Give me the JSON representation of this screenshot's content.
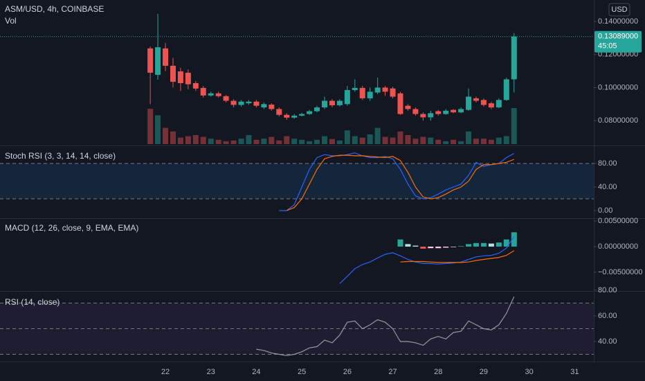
{
  "chart_data": [
    {
      "type": "candlestick",
      "title": "ASM/USD, 4h, COINBASE",
      "subtitle": "Vol",
      "currency": "USD",
      "x": [
        21.667,
        21.833,
        22,
        22.167,
        22.333,
        22.5,
        22.667,
        22.833,
        23,
        23.167,
        23.333,
        23.5,
        23.667,
        23.833,
        24,
        24.167,
        24.333,
        24.5,
        24.667,
        24.833,
        25,
        25.167,
        25.333,
        25.5,
        25.667,
        25.833,
        26,
        26.167,
        26.333,
        26.5,
        26.667,
        26.833,
        27,
        27.167,
        27.333,
        27.5,
        27.667,
        27.833,
        28,
        28.167,
        28.333,
        28.5,
        28.667,
        28.833,
        29,
        29.167,
        29.333,
        29.5,
        29.667
      ],
      "open": [
        0.1237,
        0.1077,
        0.1237,
        0.1132,
        0.1098,
        0.109,
        0.1027,
        0.0998,
        0.0952,
        0.0965,
        0.0948,
        0.092,
        0.0895,
        0.0905,
        0.0915,
        0.088,
        0.0897,
        0.087,
        0.0835,
        0.0818,
        0.083,
        0.084,
        0.0857,
        0.088,
        0.092,
        0.0893,
        0.09,
        0.0985,
        0.0998,
        0.0935,
        0.097,
        0.1,
        0.0995,
        0.0965,
        0.089,
        0.087,
        0.084,
        0.082,
        0.0857,
        0.084,
        0.0865,
        0.085,
        0.0865,
        0.0935,
        0.0925,
        0.0905,
        0.088,
        0.0925,
        0.105
      ],
      "high": [
        0.1249,
        0.1446,
        0.127,
        0.118,
        0.112,
        0.111,
        0.104,
        0.101,
        0.0975,
        0.0975,
        0.0955,
        0.093,
        0.0925,
        0.0925,
        0.0925,
        0.091,
        0.0905,
        0.088,
        0.0845,
        0.084,
        0.0848,
        0.0865,
        0.089,
        0.0945,
        0.093,
        0.093,
        0.101,
        0.105,
        0.101,
        0.1,
        0.106,
        0.101,
        0.1005,
        0.0975,
        0.09,
        0.088,
        0.085,
        0.086,
        0.0865,
        0.087,
        0.087,
        0.088,
        0.0995,
        0.0945,
        0.0935,
        0.0915,
        0.0935,
        0.106,
        0.133
      ],
      "low": [
        0.09,
        0.1048,
        0.11,
        0.1,
        0.098,
        0.099,
        0.098,
        0.094,
        0.0945,
        0.094,
        0.091,
        0.088,
        0.0885,
        0.0895,
        0.088,
        0.087,
        0.086,
        0.0825,
        0.0805,
        0.081,
        0.0825,
        0.0835,
        0.085,
        0.087,
        0.088,
        0.0885,
        0.089,
        0.0975,
        0.0925,
        0.092,
        0.096,
        0.095,
        0.0935,
        0.0835,
        0.086,
        0.083,
        0.08,
        0.08,
        0.083,
        0.0835,
        0.0845,
        0.0845,
        0.086,
        0.091,
        0.0885,
        0.087,
        0.0875,
        0.092,
        0.097
      ],
      "close": [
        0.109,
        0.1244,
        0.1132,
        0.1035,
        0.1027,
        0.102,
        0.0994,
        0.0952,
        0.0965,
        0.0948,
        0.092,
        0.0895,
        0.0915,
        0.0915,
        0.089,
        0.09,
        0.087,
        0.0835,
        0.0818,
        0.083,
        0.084,
        0.0857,
        0.088,
        0.092,
        0.0893,
        0.092,
        0.0985,
        0.0998,
        0.0935,
        0.0975,
        0.1,
        0.0975,
        0.0945,
        0.084,
        0.087,
        0.084,
        0.082,
        0.0845,
        0.084,
        0.086,
        0.085,
        0.087,
        0.0945,
        0.092,
        0.0895,
        0.088,
        0.0925,
        0.105,
        0.13089
      ],
      "volume": [
        98,
        80,
        45,
        35,
        18,
        22,
        25,
        20,
        15,
        12,
        8,
        10,
        15,
        25,
        12,
        15,
        20,
        10,
        22,
        15,
        12,
        8,
        12,
        22,
        14,
        10,
        38,
        22,
        18,
        27,
        45,
        20,
        18,
        35,
        25,
        15,
        20,
        18,
        12,
        8,
        12,
        8,
        35,
        15,
        15,
        12,
        18,
        22,
        100
      ],
      "up_color": "#26a69a",
      "down_color": "#ef5350",
      "xlim": [
        18.362,
        31.421
      ],
      "xticks": [
        22,
        23,
        24,
        25,
        26,
        27,
        28,
        29,
        30,
        31
      ],
      "ylim": [
        0.0658,
        0.153
      ],
      "yticks": [
        {
          "value": 0.08,
          "label": "0.08000000"
        },
        {
          "value": 0.1,
          "label": "0.10000000"
        },
        {
          "value": 0.12,
          "label": "0.12000000"
        },
        {
          "value": 0.14,
          "label": "0.14000000"
        }
      ],
      "last_price": {
        "value": 0.13089,
        "label": "0.13089000"
      },
      "countdown": "45:05"
    },
    {
      "type": "line",
      "title": "Stoch RSI (3, 3, 14, 14, close)",
      "series": [
        {
          "color": "#2962ff",
          "values": [
            null,
            null,
            null,
            null,
            null,
            null,
            null,
            null,
            null,
            null,
            null,
            null,
            null,
            null,
            null,
            null,
            null,
            0,
            0,
            10,
            40,
            70,
            90,
            95,
            93,
            93,
            95,
            98,
            93,
            90,
            90,
            92,
            88,
            70,
            45,
            25,
            20,
            22,
            28,
            35,
            40,
            45,
            60,
            82,
            75,
            78,
            80,
            90,
            97
          ]
        },
        {
          "color": "#ff6d00",
          "values": [
            null,
            null,
            null,
            null,
            null,
            null,
            null,
            null,
            null,
            null,
            null,
            null,
            null,
            null,
            null,
            null,
            null,
            null,
            0,
            5,
            20,
            45,
            70,
            88,
            92,
            94,
            94,
            93,
            93,
            92,
            91,
            90,
            92,
            85,
            65,
            40,
            23,
            20,
            22,
            28,
            35,
            40,
            50,
            70,
            78,
            78,
            80,
            82,
            87
          ]
        }
      ],
      "ylim": [
        -10.6,
        107
      ],
      "yticks": [
        {
          "value": 0,
          "label": "0.00"
        },
        {
          "value": 40,
          "label": "40.00"
        },
        {
          "value": 80,
          "label": "80.00"
        }
      ],
      "levels": [
        20,
        80
      ],
      "band_color": "rgba(33,150,243,0.12)"
    },
    {
      "type": "macd",
      "title": "MACD (12, 26, close, 9, EMA, EMA)",
      "series": [
        {
          "color": "#2962ff",
          "values": [
            null,
            null,
            null,
            null,
            null,
            null,
            null,
            null,
            null,
            null,
            null,
            null,
            null,
            null,
            null,
            null,
            null,
            null,
            null,
            null,
            null,
            null,
            null,
            null,
            null,
            -0.0072,
            -0.0058,
            -0.0043,
            -0.0035,
            -0.003,
            -0.0022,
            -0.0015,
            -0.0012,
            -0.0018,
            -0.0025,
            -0.003,
            -0.0033,
            -0.0033,
            -0.0034,
            -0.0033,
            -0.0032,
            -0.003,
            -0.0025,
            -0.002,
            -0.0018,
            -0.0017,
            -0.0013,
            -0.0003,
            0.002
          ]
        },
        {
          "color": "#ff6d00",
          "values": [
            null,
            null,
            null,
            null,
            null,
            null,
            null,
            null,
            null,
            null,
            null,
            null,
            null,
            null,
            null,
            null,
            null,
            null,
            null,
            null,
            null,
            null,
            null,
            null,
            null,
            null,
            null,
            null,
            null,
            null,
            null,
            null,
            null,
            -0.003,
            -0.0029,
            -0.0029,
            -0.0029,
            -0.003,
            -0.0031,
            -0.0031,
            -0.0031,
            -0.0031,
            -0.003,
            -0.0027,
            -0.0025,
            -0.0023,
            -0.0021,
            -0.0017,
            -0.0008
          ]
        }
      ],
      "histogram": [
        null,
        null,
        null,
        null,
        null,
        null,
        null,
        null,
        null,
        null,
        null,
        null,
        null,
        null,
        null,
        null,
        null,
        null,
        null,
        null,
        null,
        null,
        null,
        null,
        null,
        null,
        null,
        null,
        null,
        null,
        null,
        null,
        null,
        0.0014,
        0.0005,
        0.0002,
        -0.0004,
        -0.0003,
        -0.0003,
        -0.0002,
        -0.0001,
        0.0001,
        0.0005,
        0.0007,
        0.0007,
        0.0006,
        0.0008,
        0.0014,
        0.0028
      ],
      "histogram_colors": [
        "#26a69a",
        "#b2dfdb",
        "#ffcdd2",
        "#ef5350"
      ],
      "ylim": [
        -0.00838,
        0.00514
      ],
      "yticks": [
        {
          "value": -0.005,
          "label": "−0.00500000"
        },
        {
          "value": 0,
          "label": "0.00000000"
        },
        {
          "value": 0.005,
          "label": "0.00500000"
        }
      ]
    },
    {
      "type": "line",
      "title": "RSI (14, close)",
      "series": [
        {
          "color": "#9598a1",
          "values": [
            null,
            null,
            null,
            null,
            null,
            null,
            null,
            null,
            null,
            null,
            null,
            null,
            null,
            null,
            34,
            33,
            31,
            30,
            29,
            30,
            32,
            35,
            36,
            41,
            39,
            45,
            55,
            56,
            50,
            53,
            57,
            55,
            50,
            40,
            40,
            39,
            37,
            42,
            44,
            42,
            47,
            48,
            56,
            53,
            50,
            49,
            53,
            62,
            75
          ]
        }
      ],
      "ylim": [
        25.4,
        77.8
      ],
      "yticks": [
        {
          "value": 40,
          "label": "40.00"
        },
        {
          "value": 60,
          "label": "60.00"
        },
        {
          "value": 80,
          "label": "80.00"
        }
      ],
      "levels": [
        30,
        50,
        70
      ],
      "band_color": "rgba(126,87,194,0.1)"
    }
  ]
}
